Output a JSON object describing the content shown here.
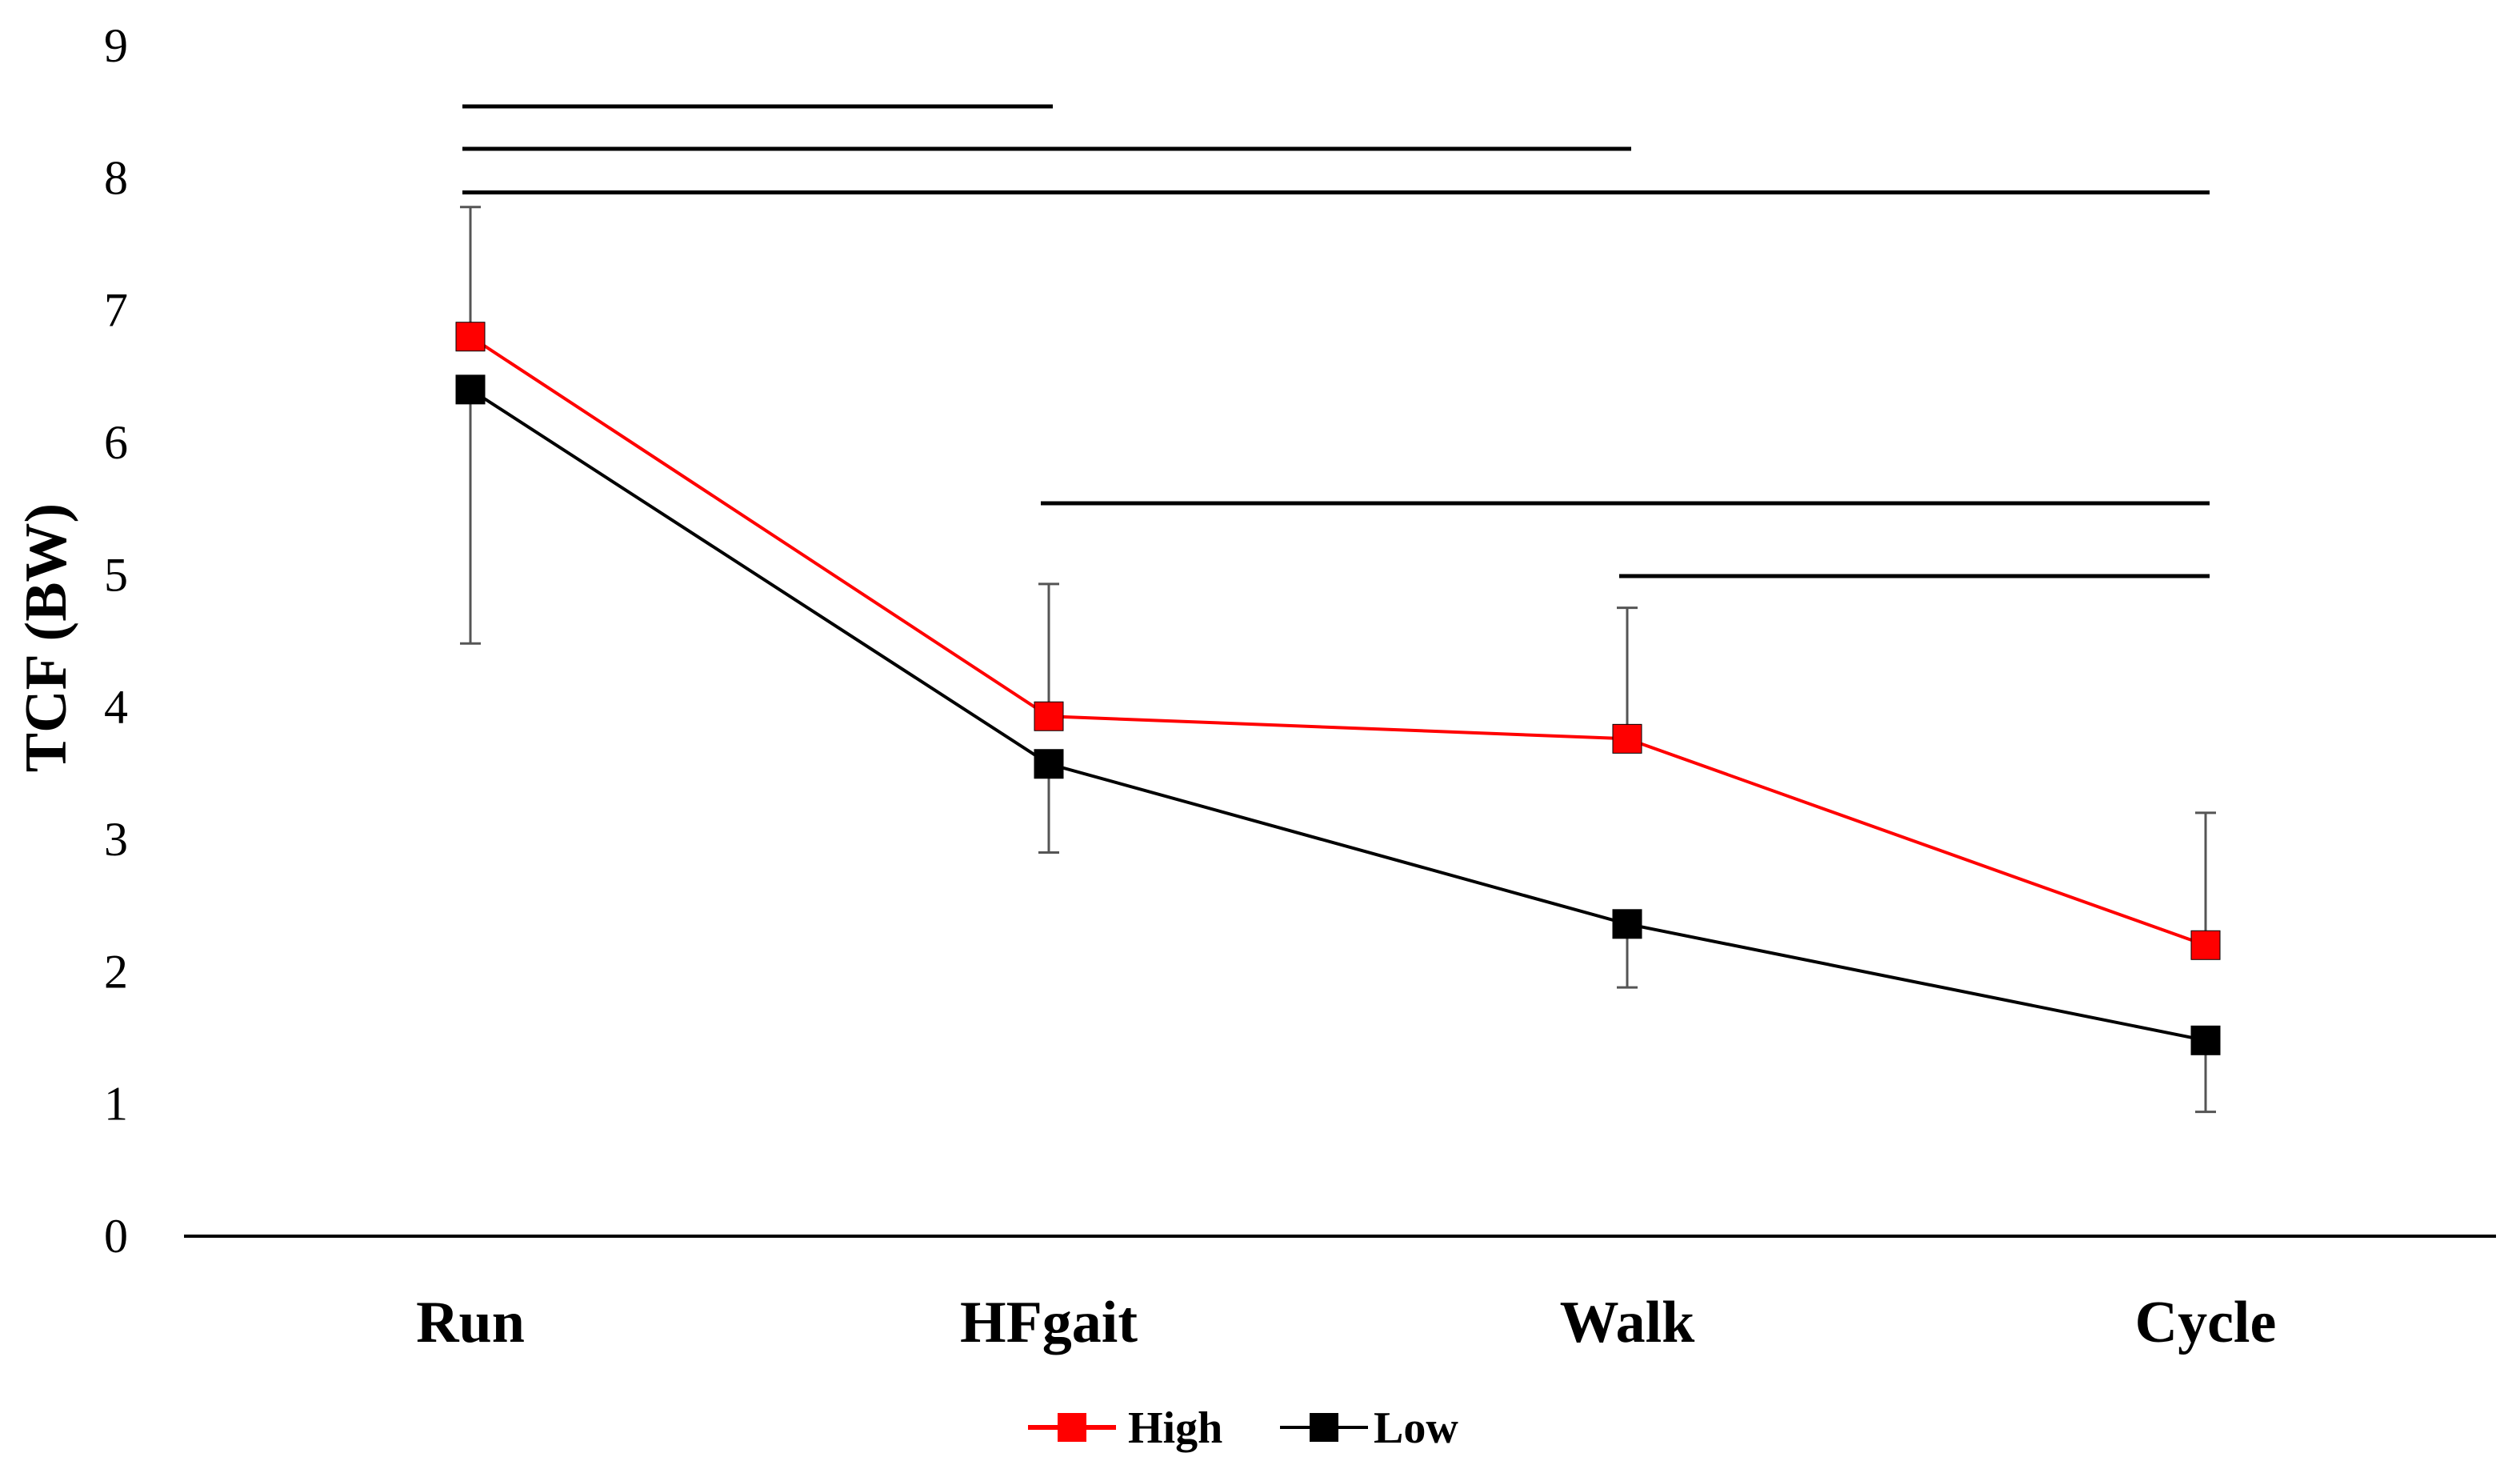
{
  "chart_data": {
    "type": "line",
    "title": "",
    "xlabel": "",
    "ylabel": "TCF (BW)",
    "ylim": [
      0,
      9
    ],
    "yticks": [
      "0",
      "1",
      "2",
      "3",
      "4",
      "5",
      "6",
      "7",
      "8",
      "9"
    ],
    "categories": [
      "Run",
      "HFgait",
      "Walk",
      "Cycle"
    ],
    "series": [
      {
        "name": "High",
        "color": "#ff0000",
        "marker": "square",
        "values": [
          6.8,
          3.93,
          3.76,
          2.2
        ],
        "error_upper": [
          7.78,
          4.93,
          4.75,
          3.2
        ]
      },
      {
        "name": "Low",
        "color": "#000000",
        "marker": "square",
        "values": [
          6.4,
          3.57,
          2.36,
          1.48
        ],
        "error_lower": [
          4.48,
          2.9,
          1.88,
          0.94
        ]
      }
    ],
    "significance_bars": [
      {
        "from": "Run",
        "to": "HFgait",
        "y": 8.54
      },
      {
        "from": "Run",
        "to": "Walk",
        "y": 8.22
      },
      {
        "from": "Run",
        "to": "Cycle",
        "y": 7.89
      },
      {
        "from": "HFgait",
        "to": "Cycle",
        "y": 5.54
      },
      {
        "from": "Walk",
        "to": "Cycle",
        "y": 4.99
      }
    ],
    "legend_position": "bottom-center"
  }
}
